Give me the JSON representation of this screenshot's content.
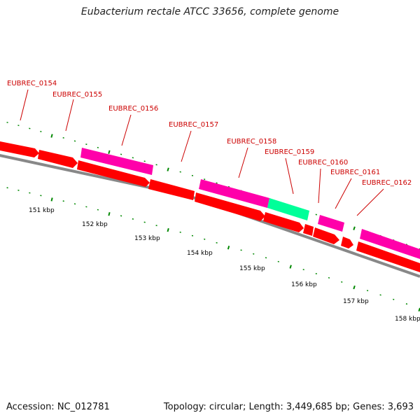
{
  "title": "Eubacterium rectale ATCC 33656, complete genome",
  "footer": {
    "accession": "Accession: NC_012781",
    "summary": "Topology: circular; Length: 3,449,685 bp; Genes: 3,693"
  },
  "colors": {
    "forward_gene": "#ff0000",
    "other_gene": "#ff00aa",
    "highlight_gene": "#00ff99",
    "backbone": "#888888",
    "ticks": "#008800",
    "labels": "#cc0000"
  },
  "gene_labels": [
    "EUBREC_0154",
    "EUBREC_0155",
    "EUBREC_0156",
    "EUBREC_0157",
    "EUBREC_0158",
    "EUBREC_0159",
    "EUBREC_0160",
    "EUBREC_0161",
    "EUBREC_0162"
  ],
  "kbp_labels": [
    "151 kbp",
    "152 kbp",
    "153 kbp",
    "154 kbp",
    "155 kbp",
    "156 kbp",
    "157 kbp",
    "158 kbp"
  ]
}
